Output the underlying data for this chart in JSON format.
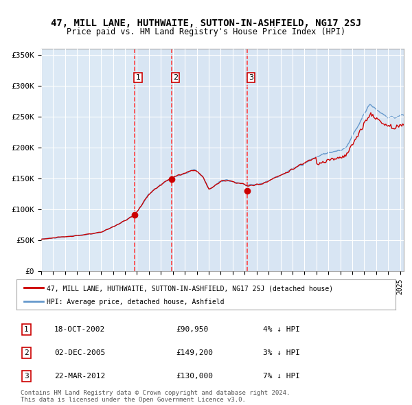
{
  "title": "47, MILL LANE, HUTHWAITE, SUTTON-IN-ASHFIELD, NG17 2SJ",
  "subtitle": "Price paid vs. HM Land Registry's House Price Index (HPI)",
  "legend_red": "47, MILL LANE, HUTHWAITE, SUTTON-IN-ASHFIELD, NG17 2SJ (detached house)",
  "legend_blue": "HPI: Average price, detached house, Ashfield",
  "footer": "Contains HM Land Registry data © Crown copyright and database right 2024.\nThis data is licensed under the Open Government Licence v3.0.",
  "transactions": [
    {
      "num": 1,
      "date": "18-OCT-2002",
      "price": 90950,
      "pct": "4%",
      "dir": "↓"
    },
    {
      "num": 2,
      "date": "02-DEC-2005",
      "price": 149200,
      "pct": "3%",
      "dir": "↓"
    },
    {
      "num": 3,
      "date": "22-MAR-2012",
      "price": 130000,
      "pct": "7%",
      "dir": "↓"
    }
  ],
  "transaction_dates_float": [
    2002.8,
    2005.92,
    2012.22
  ],
  "transaction_prices": [
    90950,
    149200,
    130000
  ],
  "ylim": [
    0,
    360000
  ],
  "yticks": [
    0,
    50000,
    100000,
    150000,
    200000,
    250000,
    300000,
    350000
  ],
  "ytick_labels": [
    "£0",
    "£50K",
    "£100K",
    "£150K",
    "£200K",
    "£250K",
    "£300K",
    "£350K"
  ],
  "xlim_start": 1995.0,
  "xlim_end": 2025.3,
  "background_color": "#dce9f5",
  "plot_bg": "#dce9f5",
  "red_color": "#cc0000",
  "blue_color": "#6699cc",
  "grid_color": "#ffffff",
  "dashed_color": "#ff4444",
  "box_color": "#cc0000"
}
